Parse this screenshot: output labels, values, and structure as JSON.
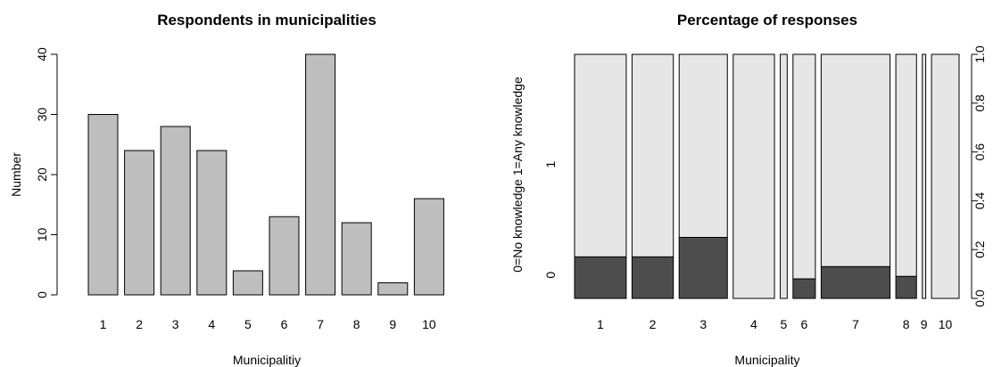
{
  "chart_data": [
    {
      "type": "bar",
      "title": "Respondents in municipalities",
      "xlabel": "Municipalitiy",
      "ylabel": "Number",
      "categories": [
        "1",
        "2",
        "3",
        "4",
        "5",
        "6",
        "7",
        "8",
        "9",
        "10"
      ],
      "values": [
        30,
        24,
        28,
        24,
        4,
        13,
        40,
        12,
        2,
        16
      ],
      "ylim": [
        0,
        40
      ],
      "yticks": [
        "0",
        "10",
        "20",
        "30",
        "40"
      ],
      "bar_color": "#bebebe",
      "grid": false
    },
    {
      "type": "bar",
      "subtype": "spineplot",
      "title": "Percentage of responses",
      "xlabel": "Municipality",
      "ylabel": "0=No knowledge 1=Any knowledge",
      "categories": [
        "1",
        "2",
        "3",
        "4",
        "5",
        "6",
        "7",
        "8",
        "9",
        "10"
      ],
      "counts": [
        30,
        24,
        28,
        24,
        4,
        13,
        40,
        12,
        2,
        16
      ],
      "series": [
        {
          "name": "0",
          "color": "#4d4d4d",
          "values": [
            0.17,
            0.17,
            0.25,
            0.0,
            0.0,
            0.08,
            0.13,
            0.09,
            0.0,
            0.0
          ]
        },
        {
          "name": "1",
          "color": "#e6e6e6",
          "values": [
            0.83,
            0.83,
            0.75,
            1.0,
            1.0,
            0.92,
            0.87,
            0.91,
            1.0,
            1.0
          ]
        }
      ],
      "left_ticks": [
        "0",
        "1"
      ],
      "right_ticks": [
        "0.0",
        "0.2",
        "0.4",
        "0.6",
        "0.8",
        "1.0"
      ],
      "ylim": [
        0,
        1
      ],
      "grid": false
    }
  ]
}
